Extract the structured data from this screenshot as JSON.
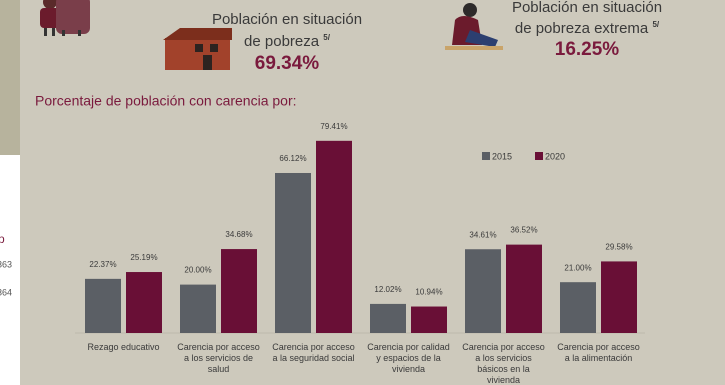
{
  "sidebar": {
    "fragments": [
      "p",
      "363",
      "364"
    ]
  },
  "indicators": [
    {
      "line1": "Población en situación",
      "line2": "de pobreza",
      "note": "5/",
      "value": "69.34%"
    },
    {
      "line1": "Población en situación",
      "line2": "de pobreza extrema",
      "note": "5/",
      "value": "16.25%"
    }
  ],
  "chart_data": {
    "type": "bar",
    "title": "Porcentaje de población con carencia por:",
    "categories": [
      "Rezago educativo",
      "Carencia por acceso a los servicios de salud",
      "Carencia por acceso a la seguridad social",
      "Carencia por calidad y espacios de la vivienda",
      "Carencia por acceso a los servicios básicos en la vivienda",
      "Carencia por acceso a la alimentación"
    ],
    "series": [
      {
        "name": "2015",
        "color": "#5b5f65",
        "values": [
          22.37,
          20,
          66.12,
          12.02,
          34.61,
          21
        ],
        "value_labels": [
          "22.37%",
          "20.00%",
          "66.12%",
          "12.02%",
          "34.61%",
          "21.00%"
        ]
      },
      {
        "name": "2020",
        "color": "#690f36",
        "values": [
          25.19,
          34.68,
          79.41,
          10.94,
          36.52,
          29.58
        ],
        "value_labels": [
          "25.19%",
          "34.68%",
          "79.41%",
          "10.94%",
          "36.52%",
          "29.58%"
        ]
      }
    ]
  }
}
